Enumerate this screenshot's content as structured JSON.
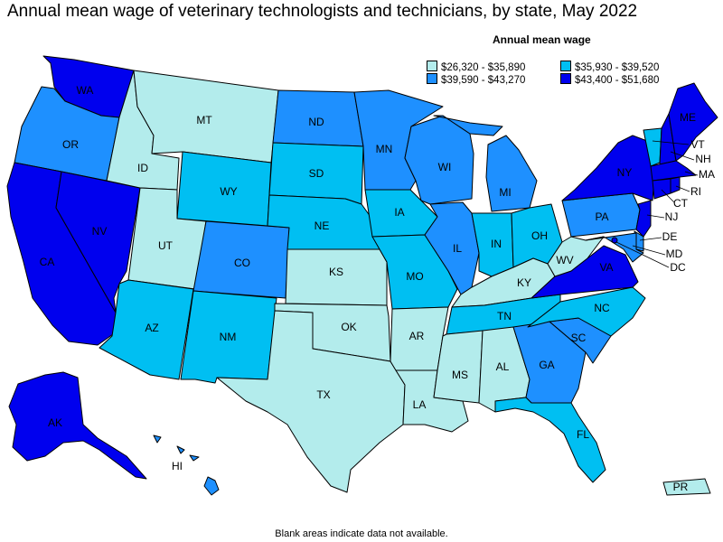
{
  "title": "Annual mean wage of veterinary technologists and technicians, by state, May 2022",
  "legend": {
    "title": "Annual mean wage",
    "ranges": [
      {
        "label": "$26,320 - $35,890",
        "color": "#b3ecec"
      },
      {
        "label": "$35,930 - $39,520",
        "color": "#00bff2"
      },
      {
        "label": "$39,590 - $43,270",
        "color": "#1e90ff"
      },
      {
        "label": "$43,400 - $51,680",
        "color": "#0000ee"
      }
    ]
  },
  "footnote": "Blank areas indicate data not available.",
  "states": {
    "WA": 3,
    "OR": 2,
    "CA": 3,
    "NV": 3,
    "ID": 0,
    "MT": 0,
    "WY": 1,
    "UT": 0,
    "AZ": 1,
    "CO": 2,
    "NM": 1,
    "ND": 2,
    "SD": 1,
    "NE": 1,
    "KS": 0,
    "OK": 0,
    "TX": 0,
    "MN": 2,
    "IA": 1,
    "MO": 1,
    "AR": 0,
    "LA": 0,
    "WI": 2,
    "IL": 2,
    "MI": 2,
    "IN": 1,
    "OH": 1,
    "KY": 0,
    "TN": 1,
    "MS": 0,
    "AL": 0,
    "GA": 2,
    "FL": 1,
    "SC": 2,
    "NC": 1,
    "VA": 3,
    "WV": 0,
    "PA": 2,
    "NY": 3,
    "VT": 1,
    "NH": 3,
    "ME": 3,
    "MA": 3,
    "RI": 3,
    "CT": 3,
    "NJ": 3,
    "DE": 2,
    "MD": 2,
    "DC": 3,
    "AK": 3,
    "HI": 2,
    "PR": 0
  }
}
